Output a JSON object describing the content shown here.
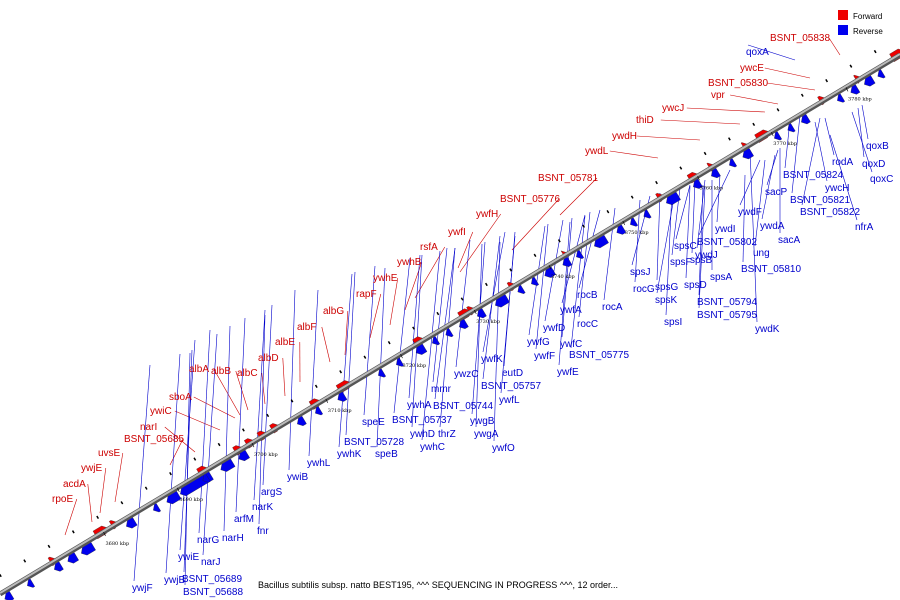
{
  "caption": "Bacillus subtilis subsp. natto BEST195, ^^^ SEQUENCING IN PROGRESS ^^^, 12 order...",
  "legend": [
    {
      "label": "Forward",
      "color": "#ee0000"
    },
    {
      "label": "Reverse",
      "color": "#0000ee"
    }
  ],
  "colors": {
    "forward": "#ee0000",
    "reverse": "#0000ee",
    "backbone": "#888888"
  },
  "scale_ticks": [
    "3680 kbp",
    "3690 kbp",
    "3700 kbp",
    "3710 kbp",
    "3720 kbp",
    "3730 kbp",
    "3740 kbp",
    "3750 kbp",
    "3760 kbp",
    "3770 kbp",
    "3780 kbp"
  ],
  "forward_labels": [
    "BSNT_05838",
    "ywcE",
    "BSNT_05830",
    "vpr",
    "ywcJ",
    "thiD",
    "ywdH",
    "ywdL",
    "BSNT_05781",
    "BSNT_05776",
    "ywfH",
    "ywfI",
    "rsfA",
    "ywhB",
    "ywhE",
    "rapF",
    "albG",
    "albF",
    "albE",
    "albD",
    "albC",
    "albB",
    "albA",
    "sboA",
    "ywiC",
    "narI",
    "BSNT_05685",
    "uvsE",
    "ywjE",
    "acdA",
    "rpoE"
  ],
  "reverse_labels": [
    "qoxA",
    "qoxB",
    "qoxD",
    "qoxC",
    "rodA",
    "ywcH",
    "nfrA",
    "BSNT_05824",
    "BSNT_05821",
    "BSNT_05822",
    "sacP",
    "ywdF",
    "ywdA",
    "sacA",
    "ung",
    "ywdI",
    "ywdJ",
    "BSNT_05802",
    "BSNT_05810",
    "spsC",
    "spsF",
    "spsB",
    "spsA",
    "spsD",
    "spsJ",
    "spsG",
    "spsK",
    "spsI",
    "ywdK",
    "BSNT_05794",
    "BSNT_05795",
    "rocG",
    "rocB",
    "rocA",
    "ywfA",
    "ywfG",
    "rocC",
    "ywfD",
    "ywfC",
    "BSNT_05775",
    "ywfF",
    "ywfE",
    "ywfK",
    "eutD",
    "ywzC",
    "BSNT_05757",
    "mmr",
    "ywfL",
    "ywhA",
    "BSNT_05744",
    "BSNT_05737",
    "ywgB",
    "thrZ",
    "ywhD",
    "ywhC",
    "ywgA",
    "ywfO",
    "speE",
    "BSNT_05728",
    "ywhK",
    "speB",
    "ywhL",
    "ywiB",
    "argS",
    "narK",
    "arfM",
    "fnr",
    "narH",
    "narG",
    "narJ",
    "ywiE",
    "ywjB",
    "BSNT_05689",
    "BSNT_05688",
    "ywjF"
  ]
}
